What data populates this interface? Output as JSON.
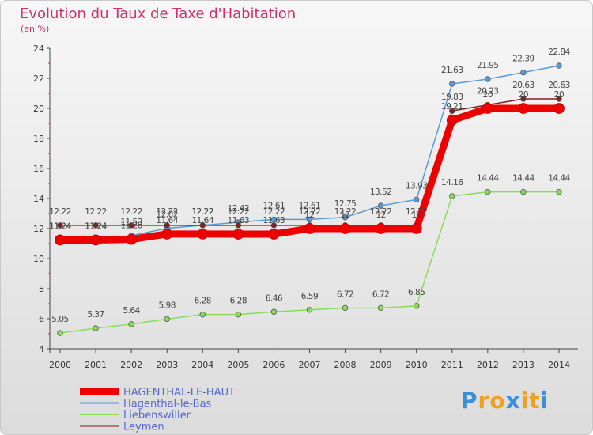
{
  "title": "Evolution du Taux de Taxe d'Habitation",
  "subtitle": "(en %)",
  "logo": {
    "text": "Proxiti",
    "letters": [
      "P",
      "r",
      "o",
      "x",
      "i",
      "t",
      "i"
    ],
    "colors": [
      "#3a8fd6",
      "#f0a020",
      "#f0a020",
      "#3a8fd6",
      "#f0a020",
      "#f0a020",
      "#3a8fd6"
    ]
  },
  "chart_data": {
    "type": "line",
    "x": [
      "2000",
      "2001",
      "2002",
      "2003",
      "2004",
      "2005",
      "2006",
      "2007",
      "2008",
      "2009",
      "2010",
      "2011",
      "2012",
      "2013",
      "2014"
    ],
    "ylim": [
      4,
      24
    ],
    "yticks": [
      "4",
      "6",
      "8",
      "10",
      "12",
      "14",
      "16",
      "18",
      "20",
      "22",
      "24"
    ],
    "grid": false,
    "legend_position": "bottom-left",
    "series": [
      {
        "name": "HAGENTHAL-LE-HAUT",
        "color": "#ee0000",
        "width": 9,
        "values": [
          11.24,
          11.24,
          11.28,
          11.64,
          11.64,
          11.63,
          11.63,
          12.0,
          12.0,
          12.0,
          12.0,
          19.21,
          20.0,
          20.0,
          20.0
        ],
        "labels": [
          "11.24",
          "11.24",
          "11.28",
          "11.64",
          "11.64",
          "11.63",
          "11.63",
          "12",
          "12",
          "12",
          "12",
          "19.21",
          "20",
          "20",
          "20"
        ]
      },
      {
        "name": "Hagenthal-le-Bas",
        "color": "#5b9bd5",
        "width": 1.5,
        "values": [
          11.24,
          11.24,
          11.53,
          12.02,
          12.22,
          12.42,
          12.61,
          12.61,
          12.75,
          13.52,
          13.93,
          21.63,
          21.95,
          22.39,
          22.84
        ],
        "labels": [
          "11.24",
          "11.24",
          "11.53",
          "12.02",
          "12.22",
          "12.42",
          "12.61",
          "12.61",
          "12.75",
          "13.52",
          "13.93",
          "21.63",
          "21.95",
          "22.39",
          "22.84"
        ]
      },
      {
        "name": "Liebenswiller",
        "color": "#88dd55",
        "width": 1.5,
        "values": [
          5.05,
          5.37,
          5.64,
          5.98,
          6.28,
          6.28,
          6.46,
          6.59,
          6.72,
          6.72,
          6.85,
          14.16,
          14.44,
          14.44,
          14.44
        ],
        "labels": [
          "5.05",
          "5.37",
          "5.64",
          "5.98",
          "6.28",
          "6.28",
          "6.46",
          "6.59",
          "6.72",
          "6.72",
          "6.85",
          "14.16",
          "14.44",
          "14.44",
          "14.44"
        ]
      },
      {
        "name": "Leymen",
        "color": "#802020",
        "width": 1.5,
        "values": [
          12.22,
          12.22,
          12.22,
          12.22,
          12.22,
          12.22,
          12.22,
          12.22,
          12.22,
          12.22,
          12.22,
          19.83,
          20.23,
          20.63,
          20.63
        ],
        "labels": [
          "12.22",
          "12.22",
          "12.22",
          "12.22",
          "12.22",
          "12.22",
          "12.22",
          "12.22",
          "12.22",
          "12.22",
          "12.22",
          "19.83",
          "20.23",
          "20.63",
          "20.63"
        ]
      }
    ]
  }
}
